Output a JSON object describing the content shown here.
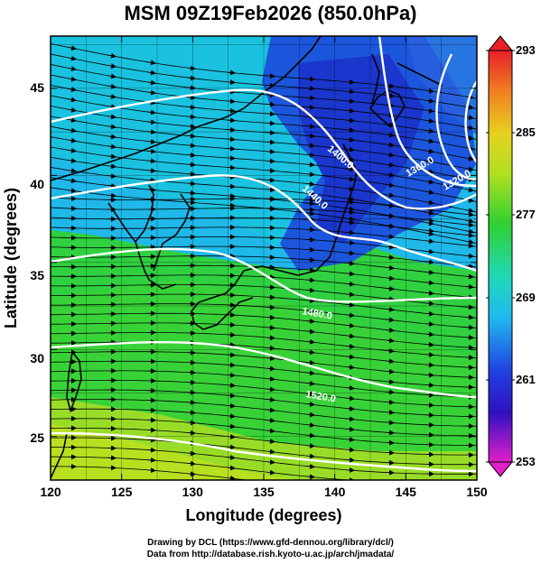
{
  "title": "MSM 09Z19Feb2026 (850.0hPa)",
  "x_axis": {
    "label": "Longitude (degrees)",
    "ticks": [
      "120",
      "125",
      "130",
      "135",
      "140",
      "145",
      "150"
    ]
  },
  "y_axis": {
    "label": "Latitude  (degrees)",
    "ticks": [
      "25",
      "30",
      "35",
      "40",
      "45"
    ]
  },
  "colorbar": {
    "tick_labels": [
      "293",
      "285",
      "277",
      "269",
      "261",
      "253"
    ]
  },
  "contour_labels": [
    "1400.0",
    "1440.0",
    "1360.0",
    "1320.0",
    "1480.0",
    "1520.0"
  ],
  "credits": {
    "line1": "Drawing by DCL (https://www.gfd-dennou.org/library/dcl/)",
    "line2": "Data from http://database.rish.kyoto-u.ac.jp/arch/jmadata/"
  },
  "colors": {
    "cold": "#1c3ad8",
    "cool": "#1aa6ec",
    "cyan": "#19d8c4",
    "green": "#2cd23a",
    "yellow_green": "#a8e01c",
    "contour": "#ffffff",
    "coastline": "#000000"
  }
}
